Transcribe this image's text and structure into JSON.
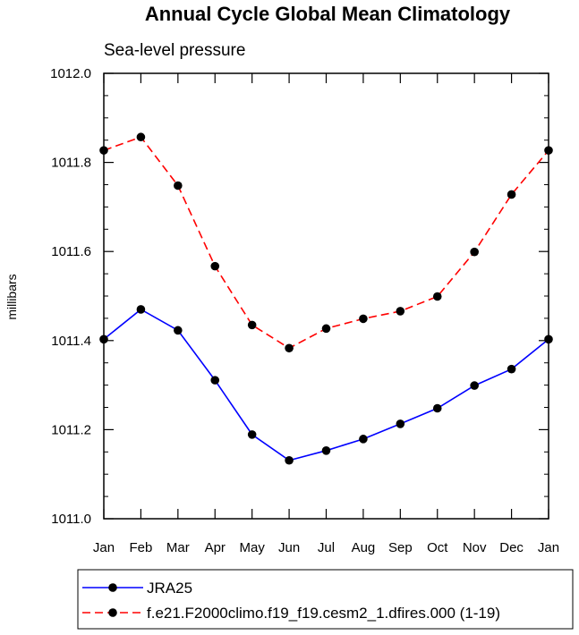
{
  "chart_data": {
    "type": "line",
    "title": "Annual Cycle Global Mean Climatology",
    "subtitle": "Sea-level pressure",
    "xlabel": "",
    "ylabel": "millibars",
    "categories": [
      "Jan",
      "Feb",
      "Mar",
      "Apr",
      "May",
      "Jun",
      "Jul",
      "Aug",
      "Sep",
      "Oct",
      "Nov",
      "Dec",
      "Jan"
    ],
    "ylim": [
      1011.0,
      1012.0
    ],
    "yticks": [
      "1011.0",
      "1011.2",
      "1011.4",
      "1011.6",
      "1011.8",
      "1012.0"
    ],
    "series": [
      {
        "name": "JRA25",
        "color": "#0000ff",
        "dash": "solid",
        "values": [
          1011.403,
          1011.47,
          1011.423,
          1011.311,
          1011.189,
          1011.131,
          1011.153,
          1011.179,
          1011.213,
          1011.248,
          1011.299,
          1011.336,
          1011.403
        ]
      },
      {
        "name": "f.e21.F2000climo.f19_f19.cesm2_1.dfires.000 (1-19)",
        "color": "#ff0000",
        "dash": "dashed",
        "values": [
          1011.827,
          1011.857,
          1011.748,
          1011.567,
          1011.435,
          1011.383,
          1011.427,
          1011.449,
          1011.466,
          1011.499,
          1011.599,
          1011.728,
          1011.827
        ]
      }
    ],
    "legend_position": "bottom"
  }
}
